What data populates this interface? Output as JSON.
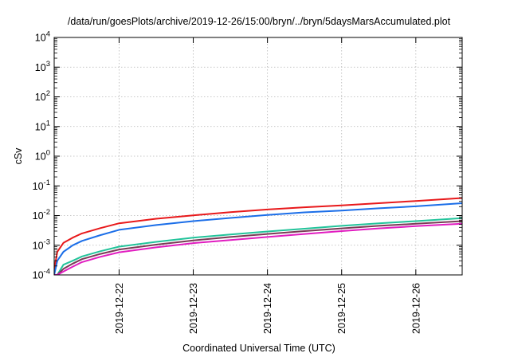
{
  "chart_data": {
    "type": "line",
    "title": "/data/run/goesPlots/archive/2019-12-26/15:00/bryn/../bryn/5daysMarsAccumulated.plot",
    "xlabel": "Coordinated Universal Time (UTC)",
    "ylabel": "cSv",
    "y_scale": "log",
    "ylim": [
      0.0001,
      10000
    ],
    "xlim": [
      "2019-12-21T03:00",
      "2019-12-26T15:00"
    ],
    "grid": true,
    "y_ticks": [
      {
        "value": 0.0001,
        "mantissa": "10",
        "exp": "-4"
      },
      {
        "value": 0.001,
        "mantissa": "10",
        "exp": "-3"
      },
      {
        "value": 0.01,
        "mantissa": "10",
        "exp": "-2"
      },
      {
        "value": 0.1,
        "mantissa": "10",
        "exp": "-1"
      },
      {
        "value": 1,
        "mantissa": "10",
        "exp": "0"
      },
      {
        "value": 10,
        "mantissa": "10",
        "exp": "1"
      },
      {
        "value": 100,
        "mantissa": "10",
        "exp": "2"
      },
      {
        "value": 1000,
        "mantissa": "10",
        "exp": "3"
      },
      {
        "value": 10000,
        "mantissa": "10",
        "exp": "4"
      }
    ],
    "x_ticks": [
      "2019-12-22",
      "2019-12-23",
      "2019-12-24",
      "2019-12-25",
      "2019-12-26"
    ],
    "x": [
      "2019-12-21T03:00",
      "2019-12-21T04:00",
      "2019-12-21T06:00",
      "2019-12-21T09:00",
      "2019-12-21T12:00",
      "2019-12-21T18:00",
      "2019-12-22T00:00",
      "2019-12-22T12:00",
      "2019-12-23T00:00",
      "2019-12-23T12:00",
      "2019-12-24T00:00",
      "2019-12-24T12:00",
      "2019-12-25T00:00",
      "2019-12-25T12:00",
      "2019-12-26T00:00",
      "2019-12-26T15:00"
    ],
    "series": [
      {
        "color": "#e8191b",
        "values": [
          0.00015,
          0.0006,
          0.0012,
          0.0018,
          0.0025,
          0.0038,
          0.0055,
          0.0078,
          0.0102,
          0.013,
          0.016,
          0.019,
          0.022,
          0.026,
          0.031,
          0.039
        ]
      },
      {
        "color": "#1b6ee8",
        "values": [
          0.0001,
          0.0003,
          0.0006,
          0.001,
          0.0014,
          0.0022,
          0.0033,
          0.0048,
          0.0065,
          0.0083,
          0.0105,
          0.0128,
          0.0148,
          0.0175,
          0.0205,
          0.026
        ]
      },
      {
        "color": "#22c39a",
        "values": [
          0.0001,
          0.0001,
          0.00022,
          0.0003,
          0.00042,
          0.00063,
          0.0009,
          0.0013,
          0.0018,
          0.0023,
          0.0029,
          0.0036,
          0.0045,
          0.0055,
          0.0065,
          0.0082
        ]
      },
      {
        "color": "#7a3a55",
        "values": [
          0.0001,
          0.0001,
          0.00016,
          0.00024,
          0.00034,
          0.00051,
          0.00072,
          0.00105,
          0.00145,
          0.0019,
          0.0024,
          0.003,
          0.0037,
          0.0045,
          0.0053,
          0.0065
        ]
      },
      {
        "color": "#e11cc0",
        "values": [
          0.0001,
          0.0001,
          0.00013,
          0.00019,
          0.00027,
          0.00041,
          0.00058,
          0.00085,
          0.00118,
          0.0015,
          0.0019,
          0.0024,
          0.003,
          0.0037,
          0.0044,
          0.0053
        ]
      }
    ]
  }
}
